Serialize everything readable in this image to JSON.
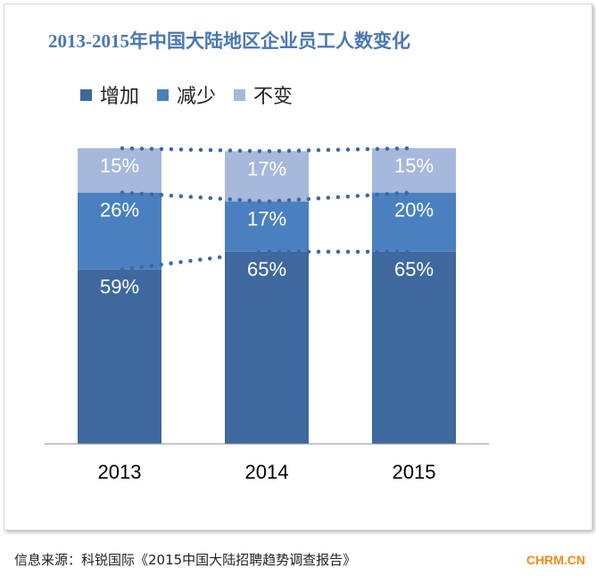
{
  "chart_data": {
    "type": "bar",
    "stacked": true,
    "title": "2013-2015年中国大陆地区企业员工人数变化",
    "categories": [
      "2013",
      "2014",
      "2015"
    ],
    "series": [
      {
        "name": "增加",
        "values": [
          59,
          65,
          65
        ],
        "color": "#3e689e",
        "labels": [
          "59%",
          "65%",
          "65%"
        ]
      },
      {
        "name": "减少",
        "values": [
          26,
          17,
          20
        ],
        "color": "#4a80c0",
        "labels": [
          "26%",
          "17%",
          "20%"
        ]
      },
      {
        "name": "不变",
        "values": [
          15,
          17,
          15
        ],
        "color": "#a6b8db",
        "labels": [
          "15%",
          "17%",
          "15%"
        ]
      }
    ],
    "ylim": [
      0,
      100
    ],
    "legend": "top-left",
    "grid": false,
    "connector_lines": "dotted"
  },
  "footer": {
    "source": "信息来源：科锐国际《2015中国大陆招聘趋势调查报告》",
    "brand": "CHRM.CN"
  }
}
